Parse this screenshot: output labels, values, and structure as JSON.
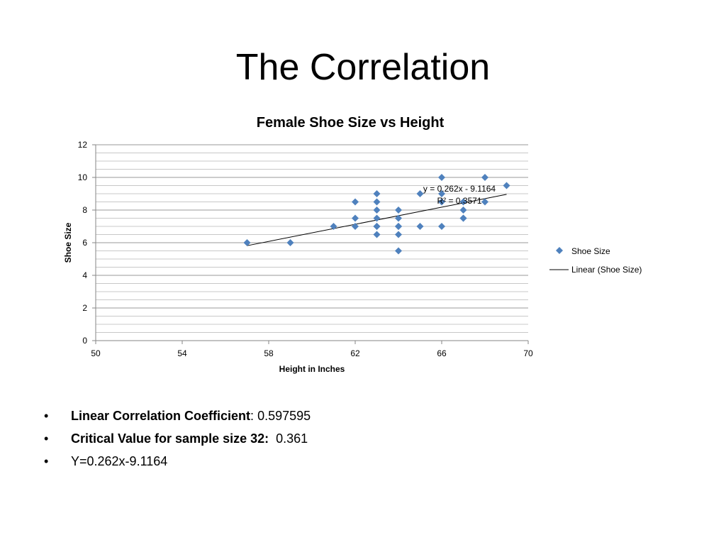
{
  "slide": {
    "title": "The Correlation",
    "bullets": [
      {
        "label": "Linear Correlation Coefficient",
        "sep": ":",
        "value": " 0.597595"
      },
      {
        "label": "Critical Value for sample size 32:",
        "sep": "",
        "value": "  0.361"
      },
      {
        "label": "",
        "sep": "",
        "value": "Y=0.262x-9.1164"
      }
    ],
    "bullet_glyph": "•"
  },
  "chart_data": {
    "type": "scatter",
    "title": "Female Shoe Size vs Height",
    "xlabel": "Height in Inches",
    "ylabel": "Shoe Size",
    "xlim": [
      50,
      70
    ],
    "ylim": [
      0,
      12
    ],
    "xticks": [
      50,
      54,
      58,
      62,
      66,
      70
    ],
    "yticks": [
      0,
      2,
      4,
      6,
      8,
      10,
      12
    ],
    "grid": true,
    "legend_position": "right",
    "series": [
      {
        "name": "Shoe Size",
        "color": "#4F81BD",
        "marker": "diamond",
        "x": [
          57,
          59,
          61,
          62,
          62,
          62,
          63,
          63,
          63,
          63,
          63,
          63,
          63,
          64,
          64,
          64,
          64,
          64,
          64,
          65,
          65,
          66,
          66,
          66,
          66,
          67,
          67,
          67,
          67,
          68,
          68,
          69
        ],
        "y": [
          6,
          6,
          7,
          8.5,
          7.5,
          7,
          9,
          8.5,
          8,
          7.5,
          7,
          7,
          6.5,
          8,
          7.5,
          7,
          7,
          6.5,
          5.5,
          9,
          7,
          10,
          9,
          8.5,
          7,
          8.5,
          8,
          7.5,
          7.5,
          10,
          8.5,
          9.5
        ]
      }
    ],
    "trendline": {
      "name": "Linear (Shoe Size)",
      "slope": 0.262,
      "intercept": -9.1164,
      "x_range": [
        57,
        69
      ],
      "equation": "y = 0.262x - 9.1164",
      "r_squared": "R² = 0.3571",
      "color": "#000000"
    }
  }
}
